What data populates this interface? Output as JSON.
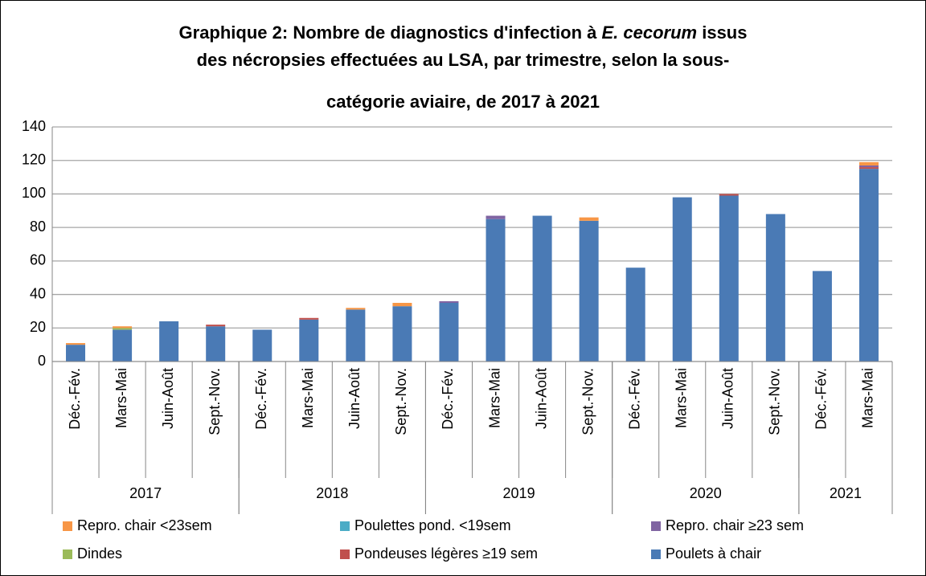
{
  "chart_data": {
    "type": "stacked_bar",
    "title": [
      [
        {
          "text": "Graphique 2: Nombre de diagnostics d'infection à "
        },
        {
          "text": "E. cecorum",
          "italic": true
        },
        {
          "text": " issus"
        }
      ],
      [
        {
          "text": "des nécropsies effectuées au LSA, par trimestre, selon la sous-"
        }
      ],
      [
        {
          "text": "catégorie aviaire, de 2017 à 2021"
        }
      ]
    ],
    "categories": [
      "Déc.-Fév.",
      "Mars-Mai",
      "Juin-Août",
      "Sept.-Nov.",
      "Déc.-Fév.",
      "Mars-Mai",
      "Juin-Août",
      "Sept.-Nov.",
      "Déc.-Fév.",
      "Mars-Mai",
      "Juin-Août",
      "Sept.-Nov.",
      "Déc.-Fév.",
      "Mars-Mai",
      "Juin-Août",
      "Sept.-Nov.",
      "Déc.-Fév.",
      "Mars-Mai"
    ],
    "groups": [
      {
        "label": "2017",
        "size": 4
      },
      {
        "label": "2018",
        "size": 4
      },
      {
        "label": "2019",
        "size": 4
      },
      {
        "label": "2020",
        "size": 4
      },
      {
        "label": "2021",
        "size": 2
      }
    ],
    "series": [
      {
        "name": "Repro. chair <23sem",
        "color": "#f79646",
        "values": [
          1,
          1,
          0,
          0,
          0,
          0,
          1,
          2,
          0,
          0,
          0,
          2,
          0,
          0,
          0,
          0,
          0,
          2
        ]
      },
      {
        "name": "Poulettes pond. <19sem",
        "color": "#4bacc6",
        "values": [
          0,
          0,
          0,
          0,
          0,
          0,
          0,
          0,
          0,
          0,
          0,
          0,
          0,
          0,
          0,
          0,
          0,
          0
        ]
      },
      {
        "name": "Repro. chair ≥23 sem",
        "color": "#8064a2",
        "values": [
          0,
          0,
          0,
          0,
          0,
          0,
          0,
          0,
          1,
          2,
          0,
          0,
          0,
          0,
          0,
          0,
          0,
          1
        ]
      },
      {
        "name": "Dindes",
        "color": "#9bbb59",
        "values": [
          0,
          1,
          0,
          0,
          0,
          0,
          0,
          0,
          0,
          0,
          0,
          0,
          0,
          0,
          0,
          0,
          0,
          0
        ]
      },
      {
        "name": "Pondeuses légères ≥19 sem",
        "color": "#c0504d",
        "values": [
          0,
          0,
          0,
          1,
          0,
          1,
          0,
          0,
          0,
          0,
          0,
          0,
          0,
          0,
          1,
          0,
          0,
          1
        ]
      },
      {
        "name": "Poulets à chair",
        "color": "#4a7ab5",
        "values": [
          10,
          19,
          24,
          21,
          19,
          25,
          31,
          33,
          35,
          85,
          87,
          84,
          56,
          98,
          99,
          88,
          54,
          115
        ]
      }
    ],
    "ylim": [
      0,
      140
    ],
    "yticks": [
      0,
      20,
      40,
      60,
      80,
      100,
      120,
      140
    ],
    "grid": true
  }
}
